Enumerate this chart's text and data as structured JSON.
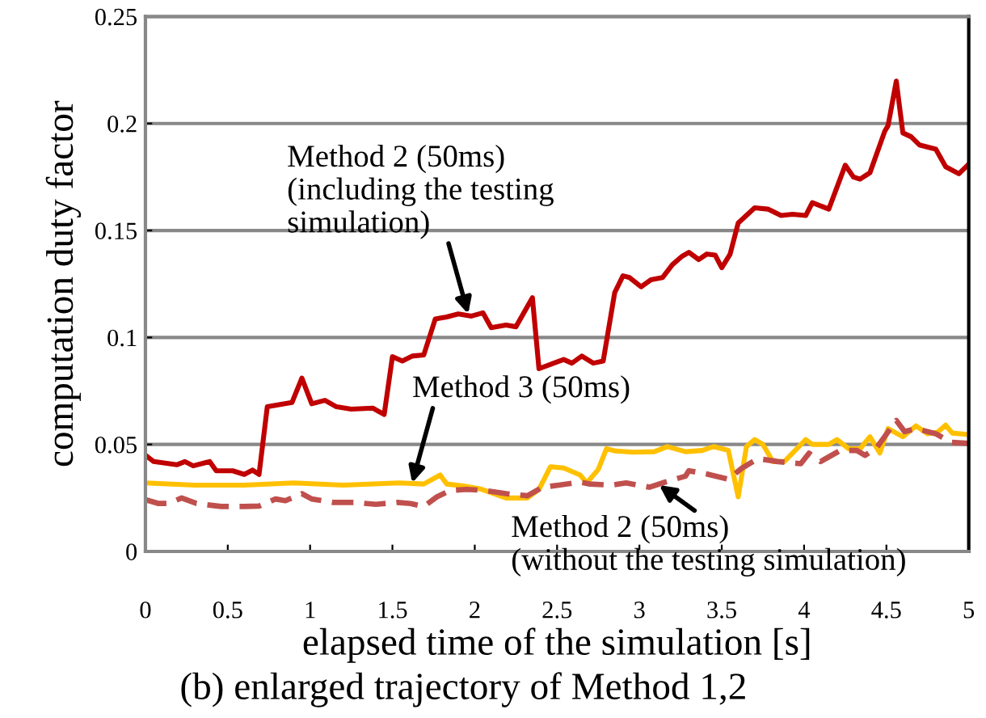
{
  "chart_data": {
    "type": "line",
    "title": "(b) enlarged trajectory of Method 1,2",
    "xlabel": "elapsed time of the simulation [s]",
    "ylabel": "computation duty factor",
    "xlim": [
      0,
      5
    ],
    "ylim": [
      0,
      0.25
    ],
    "xticks": [
      0,
      0.5,
      1,
      1.5,
      2,
      2.5,
      3,
      3.5,
      4,
      4.5,
      5
    ],
    "yticks": [
      0,
      0.05,
      0.1,
      0.15,
      0.2,
      0.25
    ],
    "grid": "y",
    "legend": false,
    "marker": "none",
    "series": [
      {
        "color": "#c00000",
        "line_style": "solid",
        "x": [
          0,
          0.05,
          0.19,
          0.24,
          0.29,
          0.39,
          0.43,
          0.53,
          0.6,
          0.65,
          0.69,
          0.74,
          0.89,
          0.95,
          1.01,
          1.09,
          1.16,
          1.25,
          1.38,
          1.45,
          1.5,
          1.56,
          1.62,
          1.69,
          1.76,
          1.83,
          1.9,
          1.98,
          2.05,
          2.1,
          2.19,
          2.25,
          2.35,
          2.39,
          2.48,
          2.54,
          2.59,
          2.65,
          2.72,
          2.78,
          2.85,
          2.9,
          2.94,
          3.01,
          3.07,
          3.14,
          3.2,
          3.26,
          3.3,
          3.36,
          3.41,
          3.46,
          3.5,
          3.55,
          3.6,
          3.7,
          3.78,
          3.86,
          3.93,
          4.01,
          4.05,
          4.15,
          4.25,
          4.3,
          4.34,
          4.4,
          4.49,
          4.51,
          4.56,
          4.6,
          4.65,
          4.7,
          4.8,
          4.86,
          4.94,
          5
        ],
        "values": [
          0.045,
          0.042,
          0.0405,
          0.042,
          0.04,
          0.042,
          0.0377,
          0.0377,
          0.036,
          0.038,
          0.036,
          0.0676,
          0.0696,
          0.081,
          0.069,
          0.0706,
          0.0676,
          0.0665,
          0.067,
          0.064,
          0.091,
          0.089,
          0.0913,
          0.0918,
          0.1086,
          0.1096,
          0.111,
          0.11,
          0.1115,
          0.1046,
          0.1058,
          0.105,
          0.1186,
          0.0854,
          0.088,
          0.0897,
          0.088,
          0.0913,
          0.088,
          0.089,
          0.121,
          0.1288,
          0.128,
          0.1237,
          0.127,
          0.128,
          0.134,
          0.138,
          0.1398,
          0.1364,
          0.139,
          0.1385,
          0.1326,
          0.1388,
          0.1535,
          0.1606,
          0.16,
          0.157,
          0.1576,
          0.157,
          0.163,
          0.16,
          0.1805,
          0.175,
          0.174,
          0.177,
          0.1964,
          0.199,
          0.2198,
          0.1956,
          0.1938,
          0.19,
          0.188,
          0.1798,
          0.1765,
          0.181
        ]
      },
      {
        "color": "#ffc000",
        "line_style": "solid",
        "x": [
          0,
          0.3,
          0.6,
          0.9,
          1.2,
          1.54,
          1.69,
          1.79,
          1.83,
          1.93,
          2.03,
          2.19,
          2.32,
          2.39,
          2.46,
          2.54,
          2.64,
          2.68,
          2.75,
          2.8,
          2.85,
          2.96,
          3.09,
          3.17,
          3.28,
          3.38,
          3.45,
          3.54,
          3.6,
          3.65,
          3.7,
          3.75,
          3.81,
          3.88,
          4.01,
          4.05,
          4.15,
          4.2,
          4.27,
          4.34,
          4.4,
          4.46,
          4.51,
          4.6,
          4.68,
          4.75,
          4.81,
          4.86,
          4.9,
          5
        ],
        "values": [
          0.032,
          0.031,
          0.031,
          0.032,
          0.031,
          0.032,
          0.0315,
          0.0357,
          0.0315,
          0.0306,
          0.0293,
          0.025,
          0.025,
          0.029,
          0.0396,
          0.039,
          0.0357,
          0.032,
          0.0383,
          0.048,
          0.047,
          0.0464,
          0.0466,
          0.049,
          0.0466,
          0.0472,
          0.049,
          0.0472,
          0.0255,
          0.049,
          0.0523,
          0.05,
          0.042,
          0.042,
          0.0523,
          0.05,
          0.05,
          0.0523,
          0.048,
          0.048,
          0.0536,
          0.046,
          0.0574,
          0.0536,
          0.0587,
          0.055,
          0.0557,
          0.059,
          0.0553,
          0.0546
        ]
      },
      {
        "color": "#c0504d",
        "line_style": "dashed",
        "x": [
          0,
          0.08,
          0.14,
          0.22,
          0.31,
          0.46,
          0.6,
          0.69,
          0.79,
          0.85,
          0.95,
          1.01,
          1.14,
          1.27,
          1.4,
          1.53,
          1.61,
          1.69,
          1.77,
          1.85,
          1.95,
          2.06,
          2.19,
          2.32,
          2.41,
          2.51,
          2.64,
          2.7,
          2.83,
          2.92,
          3.06,
          3.16,
          3.28,
          3.3,
          3.41,
          3.54,
          3.62,
          3.72,
          3.84,
          3.98,
          4.03,
          4.1,
          4.22,
          4.32,
          4.37,
          4.44,
          4.56,
          4.61,
          4.68,
          4.8,
          4.89,
          5
        ],
        "values": [
          0.0242,
          0.0224,
          0.0224,
          0.025,
          0.0224,
          0.021,
          0.021,
          0.0212,
          0.0245,
          0.0237,
          0.027,
          0.0245,
          0.0229,
          0.0229,
          0.022,
          0.0229,
          0.0224,
          0.021,
          0.0255,
          0.0285,
          0.029,
          0.0285,
          0.027,
          0.026,
          0.03,
          0.031,
          0.0324,
          0.0315,
          0.031,
          0.032,
          0.03,
          0.0325,
          0.0352,
          0.0377,
          0.0362,
          0.0337,
          0.0388,
          0.0434,
          0.042,
          0.041,
          0.0459,
          0.042,
          0.0472,
          0.0472,
          0.0449,
          0.0484,
          0.0612,
          0.056,
          0.0574,
          0.055,
          0.051,
          0.0505
        ]
      }
    ],
    "annotations": [
      {
        "text": "Method 2 (50ms)\n(including the testing\nsimulation)",
        "x": 1.96,
        "y": 0.111
      },
      {
        "text": "Method 3 (50ms)",
        "x": 1.62,
        "y": 0.032
      },
      {
        "text": "Method 2 (50ms)\n(without the testing simulation)",
        "x": 3.12,
        "y": 0.031
      }
    ]
  }
}
